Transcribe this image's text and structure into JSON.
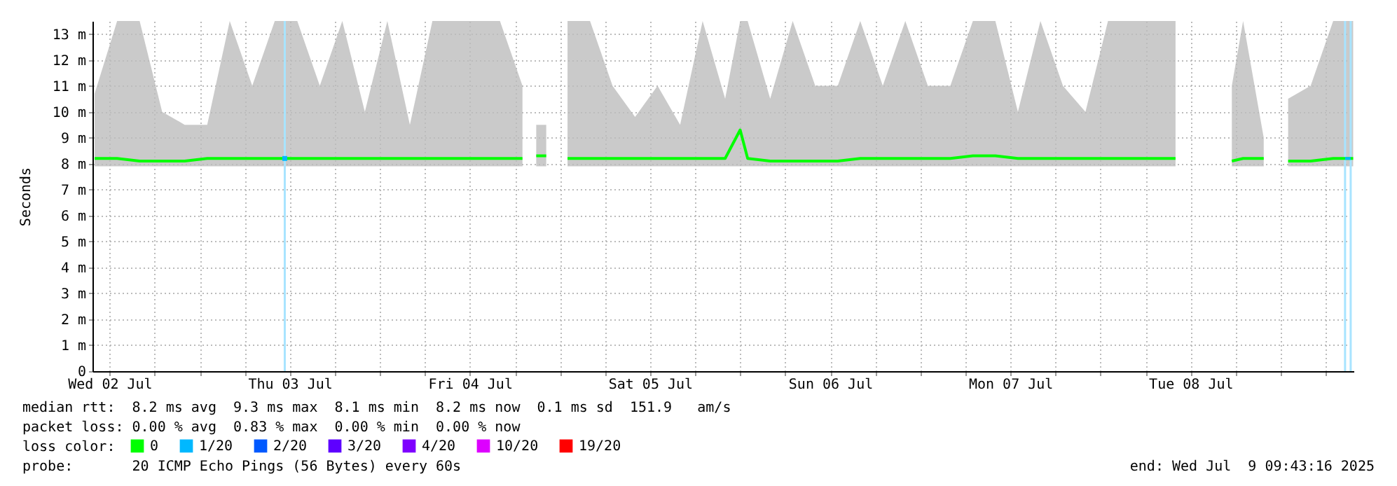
{
  "chart_data": {
    "type": "line",
    "ylabel": "Seconds",
    "legend_title": "loss color:",
    "legend": "bottom left",
    "grid": true,
    "xlim": [
      "2025-07-02T09:43",
      "2025-07-09T09:43"
    ],
    "xticks": [
      {
        "value": "2025-07-02T12:00",
        "label": "Wed 02 Jul"
      },
      {
        "value": "2025-07-02T18:00",
        "label": null
      },
      {
        "value": "2025-07-03T00:00",
        "label": null
      },
      {
        "value": "2025-07-03T06:00",
        "label": null
      },
      {
        "value": "2025-07-03T12:00",
        "label": "Thu 03 Jul"
      },
      {
        "value": "2025-07-03T18:00",
        "label": null
      },
      {
        "value": "2025-07-04T00:00",
        "label": null
      },
      {
        "value": "2025-07-04T06:00",
        "label": null
      },
      {
        "value": "2025-07-04T12:00",
        "label": "Fri 04 Jul"
      },
      {
        "value": "2025-07-04T18:00",
        "label": null
      },
      {
        "value": "2025-07-05T00:00",
        "label": null
      },
      {
        "value": "2025-07-05T06:00",
        "label": null
      },
      {
        "value": "2025-07-05T12:00",
        "label": "Sat 05 Jul"
      },
      {
        "value": "2025-07-05T18:00",
        "label": null
      },
      {
        "value": "2025-07-06T00:00",
        "label": null
      },
      {
        "value": "2025-07-06T06:00",
        "label": null
      },
      {
        "value": "2025-07-06T12:00",
        "label": "Sun 06 Jul"
      },
      {
        "value": "2025-07-06T18:00",
        "label": null
      },
      {
        "value": "2025-07-07T00:00",
        "label": null
      },
      {
        "value": "2025-07-07T06:00",
        "label": null
      },
      {
        "value": "2025-07-07T12:00",
        "label": "Mon 07 Jul"
      },
      {
        "value": "2025-07-07T18:00",
        "label": null
      },
      {
        "value": "2025-07-08T00:00",
        "label": null
      },
      {
        "value": "2025-07-08T06:00",
        "label": null
      },
      {
        "value": "2025-07-08T12:00",
        "label": "Tue 08 Jul"
      },
      {
        "value": "2025-07-08T18:00",
        "label": null
      },
      {
        "value": "2025-07-09T00:00",
        "label": null
      },
      {
        "value": "2025-07-09T06:00",
        "label": null
      }
    ],
    "ylim": [
      0,
      13.5
    ],
    "yticks": [
      0,
      {
        "value": 1,
        "label": "1 m"
      },
      {
        "value": 2,
        "label": "2 m"
      },
      {
        "value": 3,
        "label": "3 m"
      },
      {
        "value": 4,
        "label": "4 m"
      },
      {
        "value": 5,
        "label": "5 m"
      },
      {
        "value": 6,
        "label": "6 m"
      },
      {
        "value": 7,
        "label": "7 m"
      },
      {
        "value": 8,
        "label": "8 m"
      },
      {
        "value": 9,
        "label": "9 m"
      },
      {
        "value": 10,
        "label": "10 m"
      },
      {
        "value": 11,
        "label": "11 m"
      },
      {
        "value": 12,
        "label": "12 m"
      },
      {
        "value": 13,
        "label": "13 m"
      }
    ],
    "x": [
      "2025-07-02T10:00",
      "2025-07-02T13:00",
      "2025-07-02T16:00",
      "2025-07-02T19:00",
      "2025-07-02T22:00",
      "2025-07-03T01:00",
      "2025-07-03T04:00",
      "2025-07-03T07:00",
      "2025-07-03T10:00",
      "2025-07-03T13:00",
      "2025-07-03T16:00",
      "2025-07-03T19:00",
      "2025-07-03T22:00",
      "2025-07-04T01:00",
      "2025-07-04T04:00",
      "2025-07-04T07:00",
      "2025-07-04T10:00",
      "2025-07-04T13:00",
      "2025-07-04T16:00",
      "2025-07-04T19:00",
      "2025-07-04T20:20",
      "2025-07-04T20:50",
      "2025-07-04T22:10",
      "2025-07-04T23:00",
      "2025-07-05T01:00",
      "2025-07-05T04:00",
      "2025-07-05T07:00",
      "2025-07-05T10:00",
      "2025-07-05T13:00",
      "2025-07-05T16:00",
      "2025-07-05T19:00",
      "2025-07-05T22:00",
      "2025-07-06T00:00",
      "2025-07-06T01:00",
      "2025-07-06T04:00",
      "2025-07-06T07:00",
      "2025-07-06T10:00",
      "2025-07-06T13:00",
      "2025-07-06T16:00",
      "2025-07-06T19:00",
      "2025-07-06T22:00",
      "2025-07-07T01:00",
      "2025-07-07T04:00",
      "2025-07-07T07:00",
      "2025-07-07T10:00",
      "2025-07-07T13:00",
      "2025-07-07T16:00",
      "2025-07-07T19:00",
      "2025-07-07T22:00",
      "2025-07-08T01:00",
      "2025-07-08T04:00",
      "2025-07-08T07:00",
      "2025-07-08T10:00",
      "2025-07-08T13:00",
      "2025-07-08T17:30",
      "2025-07-08T19:00",
      "2025-07-08T21:45",
      "2025-07-08T23:00",
      "2025-07-09T01:00",
      "2025-07-09T04:00",
      "2025-07-09T07:00",
      "2025-07-09T09:40"
    ],
    "series": [
      {
        "name": "0",
        "color": "#00ff00",
        "values": [
          8.2,
          8.2,
          8.1,
          8.1,
          8.1,
          8.2,
          8.2,
          8.2,
          8.2,
          8.2,
          8.2,
          8.2,
          8.2,
          8.2,
          8.2,
          8.2,
          8.2,
          8.2,
          8.2,
          8.2,
          null,
          8.3,
          8.3,
          null,
          8.2,
          8.2,
          8.2,
          8.2,
          8.2,
          8.2,
          8.2,
          8.2,
          9.3,
          8.2,
          8.1,
          8.1,
          8.1,
          8.1,
          8.2,
          8.2,
          8.2,
          8.2,
          8.2,
          8.3,
          8.3,
          8.2,
          8.2,
          8.2,
          8.2,
          8.2,
          8.2,
          8.2,
          8.2,
          null,
          8.1,
          8.2,
          8.2,
          null,
          8.1,
          8.1,
          8.2,
          8.2
        ],
        "lower": [
          7.9,
          7.9,
          7.9,
          7.9,
          7.9,
          7.9,
          7.9,
          7.9,
          7.9,
          7.9,
          7.9,
          7.9,
          7.9,
          7.9,
          7.9,
          7.9,
          7.9,
          7.9,
          7.9,
          7.9,
          null,
          7.9,
          7.9,
          null,
          7.9,
          7.9,
          7.9,
          7.9,
          7.9,
          7.9,
          7.9,
          7.9,
          7.9,
          7.9,
          7.9,
          7.9,
          7.9,
          7.9,
          7.9,
          7.9,
          7.9,
          7.9,
          7.9,
          7.9,
          7.9,
          7.9,
          7.9,
          7.9,
          7.9,
          7.9,
          7.9,
          7.9,
          7.9,
          null,
          7.9,
          7.9,
          7.9,
          null,
          7.9,
          7.9,
          7.9,
          7.9
        ],
        "upper": [
          10.7,
          13.5,
          13.5,
          10,
          9.5,
          9.5,
          13.5,
          11,
          13.5,
          13.5,
          11,
          13.5,
          10,
          13.5,
          9.5,
          13.5,
          13.5,
          13.5,
          13.5,
          11,
          null,
          9.5,
          9.5,
          null,
          13.5,
          13.5,
          11,
          9.8,
          11,
          9.5,
          13.5,
          10.5,
          13.5,
          13.5,
          10.5,
          13.5,
          11,
          11,
          13.5,
          11,
          13.5,
          11,
          11,
          13.5,
          13.5,
          10,
          13.5,
          11,
          10,
          13.5,
          13.5,
          13.5,
          13.5,
          null,
          11,
          13.5,
          9,
          null,
          10.5,
          11,
          13.5,
          13.5
        ]
      },
      {
        "name": "1/20",
        "color": "#00b8ff",
        "x": [
          "2025-07-03T11:20",
          "2025-07-06T00:00",
          "2025-07-09T08:35",
          "2025-07-09T09:20"
        ],
        "values": [
          8.2,
          null,
          8.2,
          8.2
        ]
      },
      {
        "name": "2/20",
        "color": "#0059ff",
        "values": [
          null,
          null,
          null,
          null,
          null,
          null,
          null,
          null,
          null,
          null,
          null,
          null,
          null,
          null,
          null,
          null,
          null,
          null,
          null,
          null,
          null,
          null,
          null,
          null,
          null,
          null,
          null,
          null,
          null,
          null,
          null,
          null,
          null,
          null,
          null,
          null,
          null,
          null,
          null,
          null,
          null,
          null,
          null,
          null,
          null,
          null,
          null,
          null,
          null,
          null,
          null,
          null,
          null,
          null,
          null,
          null,
          null,
          null,
          null,
          null,
          null,
          null
        ]
      },
      {
        "name": "3/20",
        "color": "#5e00ff",
        "values": [
          null,
          null,
          null,
          null,
          null,
          null,
          null,
          null,
          null,
          null,
          null,
          null,
          null,
          null,
          null,
          null,
          null,
          null,
          null,
          null,
          null,
          null,
          null,
          null,
          null,
          null,
          null,
          null,
          null,
          null,
          null,
          null,
          null,
          null,
          null,
          null,
          null,
          null,
          null,
          null,
          null,
          null,
          null,
          null,
          null,
          null,
          null,
          null,
          null,
          null,
          null,
          null,
          null,
          null,
          null,
          null,
          null,
          null,
          null,
          null,
          null,
          null
        ]
      },
      {
        "name": "4/20",
        "color": "#7e00ff",
        "values": [
          null,
          null,
          null,
          null,
          null,
          null,
          null,
          null,
          null,
          null,
          null,
          null,
          null,
          null,
          null,
          null,
          null,
          null,
          null,
          null,
          null,
          null,
          null,
          null,
          null,
          null,
          null,
          null,
          null,
          null,
          null,
          null,
          null,
          null,
          null,
          null,
          null,
          null,
          null,
          null,
          null,
          null,
          null,
          null,
          null,
          null,
          null,
          null,
          null,
          null,
          null,
          null,
          null,
          null,
          null,
          null,
          null,
          null,
          null,
          null,
          null,
          null
        ]
      },
      {
        "name": "10/20",
        "color": "#dd00ff",
        "values": [
          null,
          null,
          null,
          null,
          null,
          null,
          null,
          null,
          null,
          null,
          null,
          null,
          null,
          null,
          null,
          null,
          null,
          null,
          null,
          null,
          null,
          null,
          null,
          null,
          null,
          null,
          null,
          null,
          null,
          null,
          null,
          null,
          null,
          null,
          null,
          null,
          null,
          null,
          null,
          null,
          null,
          null,
          null,
          null,
          null,
          null,
          null,
          null,
          null,
          null,
          null,
          null,
          null,
          null,
          null,
          null,
          null,
          null,
          null,
          null,
          null,
          null
        ]
      },
      {
        "name": "19/20",
        "color": "#ff0000",
        "values": [
          null,
          null,
          null,
          null,
          null,
          null,
          null,
          null,
          null,
          null,
          null,
          null,
          null,
          null,
          null,
          null,
          null,
          null,
          null,
          null,
          null,
          null,
          null,
          null,
          null,
          null,
          null,
          null,
          null,
          null,
          null,
          null,
          null,
          null,
          null,
          null,
          null,
          null,
          null,
          null,
          null,
          null,
          null,
          null,
          null,
          null,
          null,
          null,
          null,
          null,
          null,
          null,
          null,
          null,
          null,
          null,
          null,
          null,
          null,
          null,
          null,
          null
        ]
      }
    ],
    "ref_lines": [
      {
        "axis": "x",
        "value": "2025-07-03T11:20",
        "color": "#a8e4ff"
      },
      {
        "axis": "x",
        "value": "2025-07-09T08:35",
        "color": "#a8e4ff"
      },
      {
        "axis": "x",
        "value": "2025-07-09T09:20",
        "color": "#a8e4ff"
      }
    ],
    "annotations": [
      "median rtt:  8.2 ms avg  9.3 ms max  8.1 ms min  8.2 ms now  0.1 ms sd  151.9   am/s",
      "packet loss: 0.00 % avg  0.83 % max  0.00 % min  0.00 % now",
      "probe:       20 ICMP Echo Pings (56 Bytes) every 60s",
      "end: Wed Jul  9 09:43:16 2025"
    ]
  }
}
